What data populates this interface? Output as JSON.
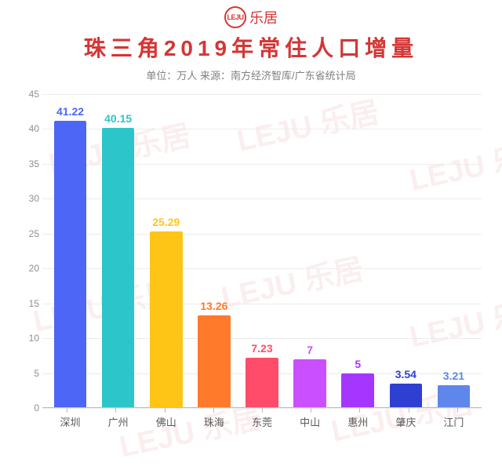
{
  "logo": {
    "mark": "LEJU",
    "text": "乐居"
  },
  "title": {
    "text": "珠三角2019年常住人口增量",
    "color": "#d53535",
    "fontsize": 28
  },
  "subtitle": {
    "text": "单位：万人 来源：南方经济智库/广东省统计局",
    "color": "#808080",
    "fontsize": 13
  },
  "chart": {
    "type": "bar",
    "ylim": [
      0,
      45
    ],
    "ytick_step": 5,
    "yticks": [
      "0",
      "5",
      "10",
      "15",
      "20",
      "25",
      "30",
      "35",
      "40",
      "45"
    ],
    "ytick_color": "#8f8f8f",
    "ytick_fontsize": 12,
    "grid_color": "#ececec",
    "axis_color": "#bdbdbd",
    "background_color": "#ffffff",
    "value_fontsize": 14,
    "xlabel_fontsize": 13,
    "xlabel_color": "#5a5a5a",
    "categories": [
      "深圳",
      "广州",
      "佛山",
      "珠海",
      "东莞",
      "中山",
      "惠州",
      "肇庆",
      "江门"
    ],
    "values": [
      41.22,
      40.15,
      25.29,
      13.26,
      7.23,
      7,
      5,
      3.54,
      3.21
    ],
    "value_labels": [
      "41.22",
      "40.15",
      "25.29",
      "13.26",
      "7.23",
      "7",
      "5",
      "3.54",
      "3.21"
    ],
    "bar_colors": [
      "#4d66f5",
      "#2cc5c9",
      "#ffc516",
      "#ff7a2b",
      "#ff4c6a",
      "#c94fff",
      "#a536ff",
      "#2e3fd1",
      "#5f86ea"
    ]
  },
  "watermark": {
    "text": "LEJU 乐居",
    "color": "rgba(236,179,179,0.22)",
    "fontsize": 38
  }
}
